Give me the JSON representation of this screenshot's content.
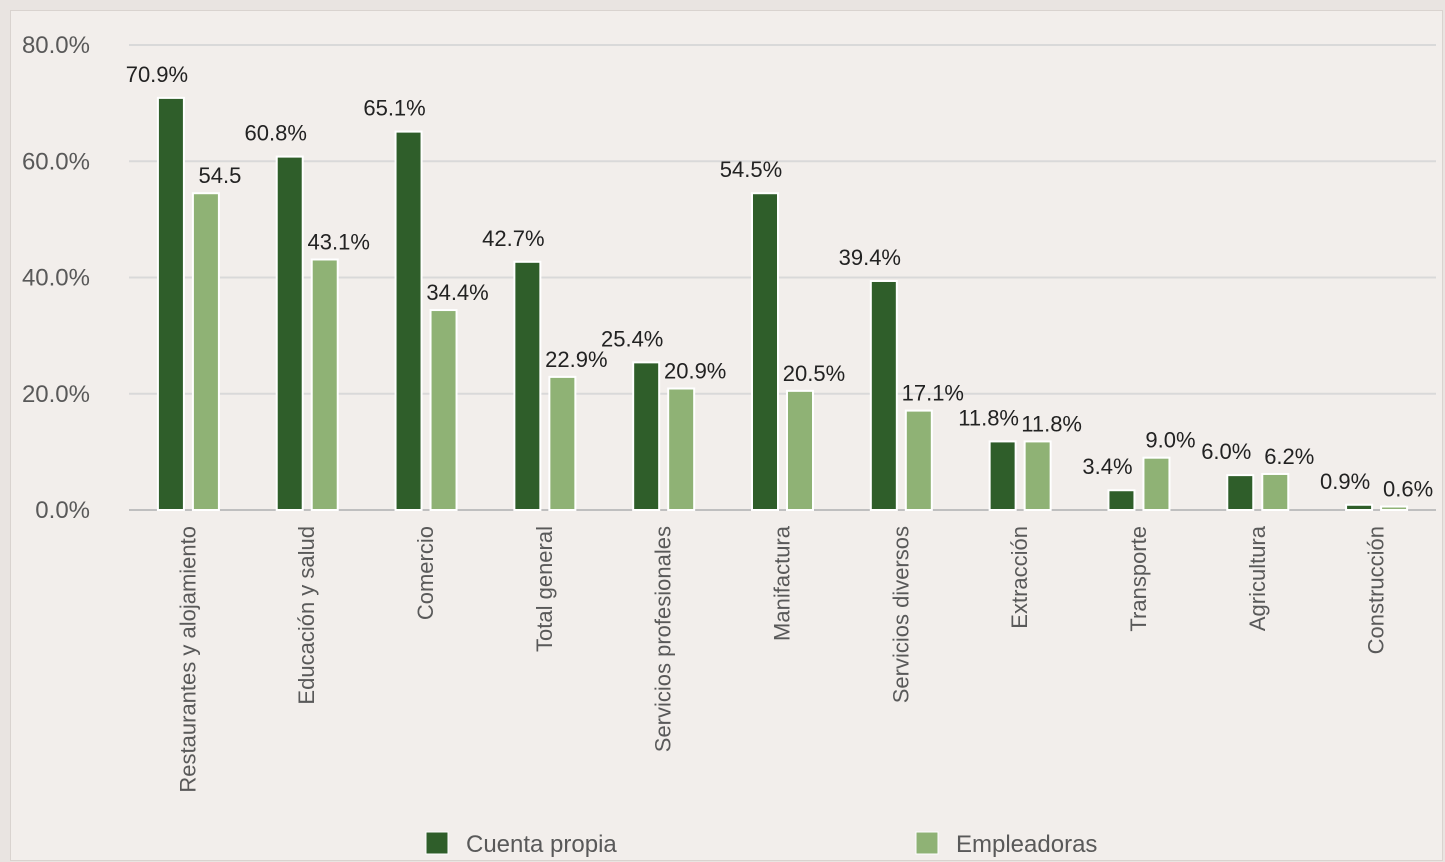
{
  "chart_data": {
    "type": "bar",
    "title": "",
    "xlabel": "",
    "ylabel": "",
    "ylim": [
      0,
      80
    ],
    "y_ticks": [
      "0.0%",
      "20.0%",
      "40.0%",
      "60.0%",
      "80.0%"
    ],
    "grid": true,
    "legend_position": "bottom",
    "categories": [
      "Restaurantes y alojamiento",
      "Educación y salud",
      "Comercio",
      "Total general",
      "Servicios profesionales",
      "Manifactura",
      "Servicios diversos",
      "Extracción",
      "Transporte",
      "Agricultura",
      "Construcción"
    ],
    "series": [
      {
        "name": "Cuenta propia",
        "color": "#2f5e2a",
        "values": [
          70.9,
          60.8,
          65.1,
          42.7,
          25.4,
          54.5,
          39.4,
          11.8,
          3.4,
          6.0,
          0.9
        ],
        "labels": [
          "70.9%",
          "60.8%",
          "65.1%",
          "42.7%",
          "25.4%",
          "54.5%",
          "39.4%",
          "11.8%",
          "3.4%",
          "6.0%",
          "0.9%"
        ]
      },
      {
        "name": "Empleadoras",
        "color": "#8fb275",
        "values": [
          54.5,
          43.1,
          34.4,
          22.9,
          20.9,
          20.5,
          17.1,
          11.8,
          9.0,
          6.2,
          0.6
        ],
        "labels": [
          "54.5",
          "43.1%",
          "34.4%",
          "22.9%",
          "20.9%",
          "20.5%",
          "17.1%",
          "11.8%",
          "9.0%",
          "6.2%",
          "0.6%"
        ]
      }
    ]
  }
}
